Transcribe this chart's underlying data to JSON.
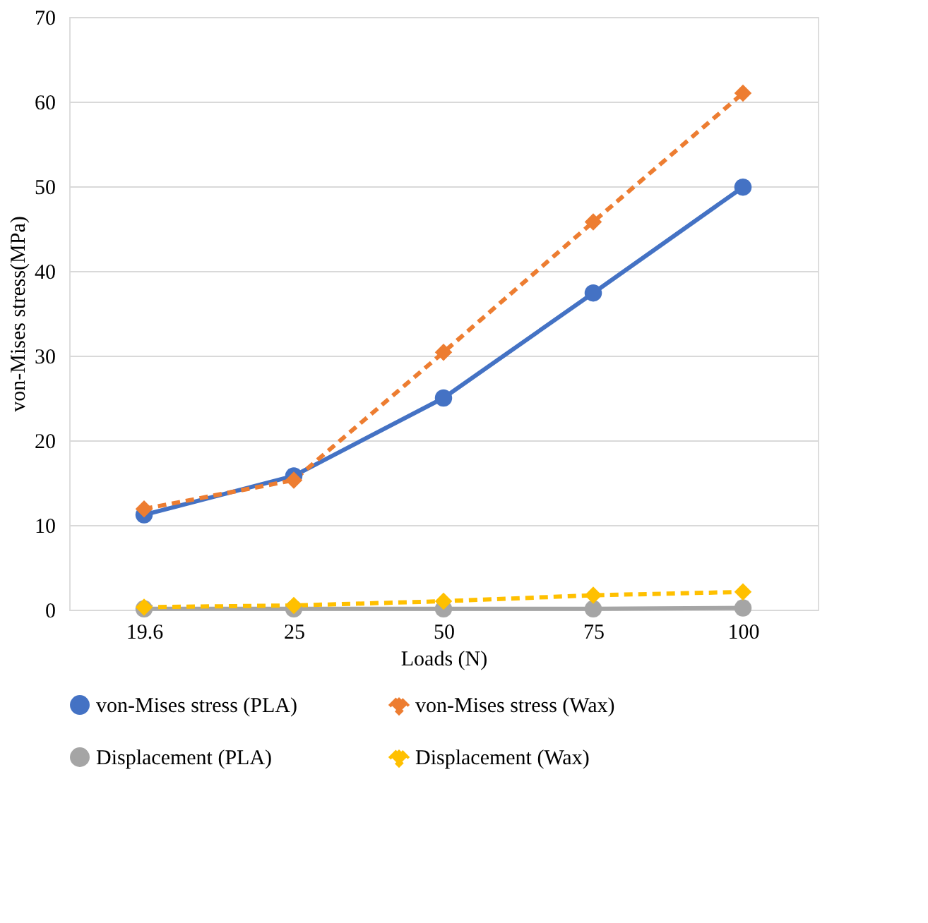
{
  "chart_data": {
    "type": "line",
    "xlabel": "Loads (N)",
    "ylabel": "von-Mises stress(MPa)",
    "categories": [
      "19.6",
      "25",
      "50",
      "75",
      "100"
    ],
    "series": [
      {
        "name": "von-Mises stress (PLA)",
        "color": "#4472c4",
        "values": [
          11.2,
          15.8,
          25,
          37.4,
          49.9
        ],
        "marker": "circle",
        "line_style": "solid"
      },
      {
        "name": "von-Mises stress (Wax)",
        "color": "#ed7d31",
        "values": [
          11.9,
          15.3,
          30.4,
          45.8,
          61
        ],
        "marker": "diamond",
        "line_style": "dashed"
      },
      {
        "name": "Displacement (PLA)",
        "color": "#a5a5a5",
        "values": [
          0.1,
          0.1,
          0.1,
          0.1,
          0.2
        ],
        "marker": "circle",
        "line_style": "solid"
      },
      {
        "name": "Displacement (Wax)",
        "color": "#ffc000",
        "values": [
          0.3,
          0.5,
          1.0,
          1.7,
          2.1
        ],
        "marker": "diamond",
        "line_style": "dashed"
      }
    ],
    "ylim": [
      0,
      70
    ],
    "yticks": [
      0,
      10,
      20,
      30,
      40,
      50,
      60,
      70
    ],
    "grid": "y",
    "legend": "bottom"
  }
}
